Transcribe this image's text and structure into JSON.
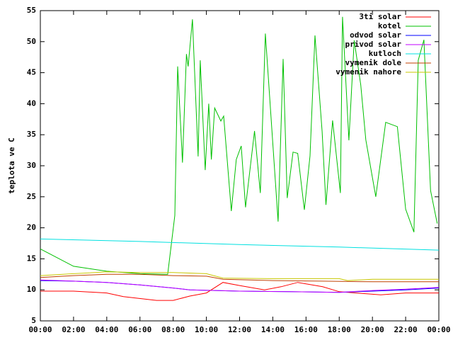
{
  "chart_data": {
    "type": "line",
    "ylabel": "teplota ve C",
    "xlim": [
      0,
      24
    ],
    "ylim": [
      5,
      55
    ],
    "xticks": [
      {
        "value": 0,
        "label": "00:00"
      },
      {
        "value": 2,
        "label": "02:00"
      },
      {
        "value": 4,
        "label": "04:00"
      },
      {
        "value": 6,
        "label": "06:00"
      },
      {
        "value": 8,
        "label": "08:00"
      },
      {
        "value": 10,
        "label": "10:00"
      },
      {
        "value": 12,
        "label": "12:00"
      },
      {
        "value": 14,
        "label": "14:00"
      },
      {
        "value": 16,
        "label": "16:00"
      },
      {
        "value": 18,
        "label": "18:00"
      },
      {
        "value": 20,
        "label": "20:00"
      },
      {
        "value": 22,
        "label": "22:00"
      },
      {
        "value": 24,
        "label": "00:00"
      }
    ],
    "yticks": [
      5,
      10,
      15,
      20,
      25,
      30,
      35,
      40,
      45,
      50,
      55
    ],
    "legend": "top-right",
    "series": [
      {
        "name": "3ti solar",
        "color": "#ff0000",
        "x": [
          0,
          2,
          4,
          5,
          7,
          8,
          9,
          10,
          11,
          12,
          13.5,
          14.5,
          15.5,
          17,
          18,
          19,
          20.5,
          22,
          24
        ],
        "values": [
          9.8,
          9.8,
          9.5,
          8.9,
          8.3,
          8.3,
          9,
          9.5,
          11.2,
          10.7,
          10,
          10.5,
          11.2,
          10.5,
          9.7,
          9.5,
          9.2,
          9.5,
          9.5
        ]
      },
      {
        "name": "kotel",
        "color": "#00c000",
        "x": [
          0,
          2,
          4,
          6,
          7.67,
          8.1,
          8.27,
          8.56,
          8.8,
          8.9,
          9.16,
          9.5,
          9.63,
          9.93,
          10.14,
          10.3,
          10.5,
          10.87,
          11.04,
          11.5,
          11.8,
          12.1,
          12.36,
          12.9,
          13.25,
          13.55,
          14.32,
          14.62,
          14.87,
          15.22,
          15.5,
          15.9,
          16.24,
          16.54,
          16.97,
          17.2,
          17.6,
          18.07,
          18.2,
          18.58,
          18.9,
          19.3,
          19.6,
          20.2,
          20.8,
          21.5,
          22,
          22.5,
          22.76,
          23.1,
          23.5,
          23.9
        ],
        "values": [
          16.6,
          13.8,
          13,
          12.6,
          12.5,
          22,
          46,
          30.5,
          48,
          46,
          53.6,
          31.5,
          47,
          29.3,
          40,
          31,
          39.3,
          37.2,
          38,
          22.7,
          31,
          33.2,
          23.3,
          35.6,
          25.6,
          51.3,
          21,
          47.2,
          24.8,
          32.2,
          32,
          22.9,
          31.6,
          51,
          35.5,
          23.7,
          37.3,
          25.6,
          54,
          34.1,
          50.2,
          43,
          34.2,
          25,
          37,
          36.3,
          23,
          19.3,
          47,
          50.3,
          26,
          20.7
        ]
      },
      {
        "name": "odvod solar",
        "color": "#0000ff",
        "x": [
          0,
          2,
          4,
          6,
          8,
          9,
          12,
          15,
          18,
          20,
          22,
          24
        ],
        "values": [
          11.5,
          11.4,
          11.2,
          10.8,
          10.3,
          10,
          9.8,
          9.7,
          9.6,
          9.8,
          10,
          10.3
        ]
      },
      {
        "name": "privod solar",
        "color": "#c000ff",
        "x": [
          0,
          2,
          4,
          6,
          8,
          9,
          12,
          15,
          18,
          20,
          22,
          24
        ],
        "values": [
          11.6,
          11.4,
          11.2,
          10.8,
          10.3,
          10,
          9.8,
          9.7,
          9.6,
          9.9,
          10.1,
          10.4
        ]
      },
      {
        "name": "kutloch",
        "color": "#00e0e0",
        "x": [
          0,
          6,
          12,
          18,
          24
        ],
        "values": [
          18.2,
          17.8,
          17.3,
          16.9,
          16.4
        ]
      },
      {
        "name": "vymenik dole",
        "color": "#c04000",
        "x": [
          0,
          2,
          4,
          6,
          8,
          10,
          11,
          14,
          17,
          20,
          24
        ],
        "values": [
          12,
          12.3,
          12.5,
          12.5,
          12.3,
          12.2,
          11.7,
          11.5,
          11.4,
          11.3,
          11.3
        ]
      },
      {
        "name": "vymenik nahore",
        "color": "#c8c800",
        "x": [
          0,
          2,
          4,
          6,
          8,
          10,
          11,
          14,
          18,
          18.5,
          20,
          24
        ],
        "values": [
          12.3,
          12.6,
          12.9,
          12.8,
          12.8,
          12.6,
          11.9,
          11.8,
          11.8,
          11.5,
          11.7,
          11.7
        ]
      }
    ]
  }
}
